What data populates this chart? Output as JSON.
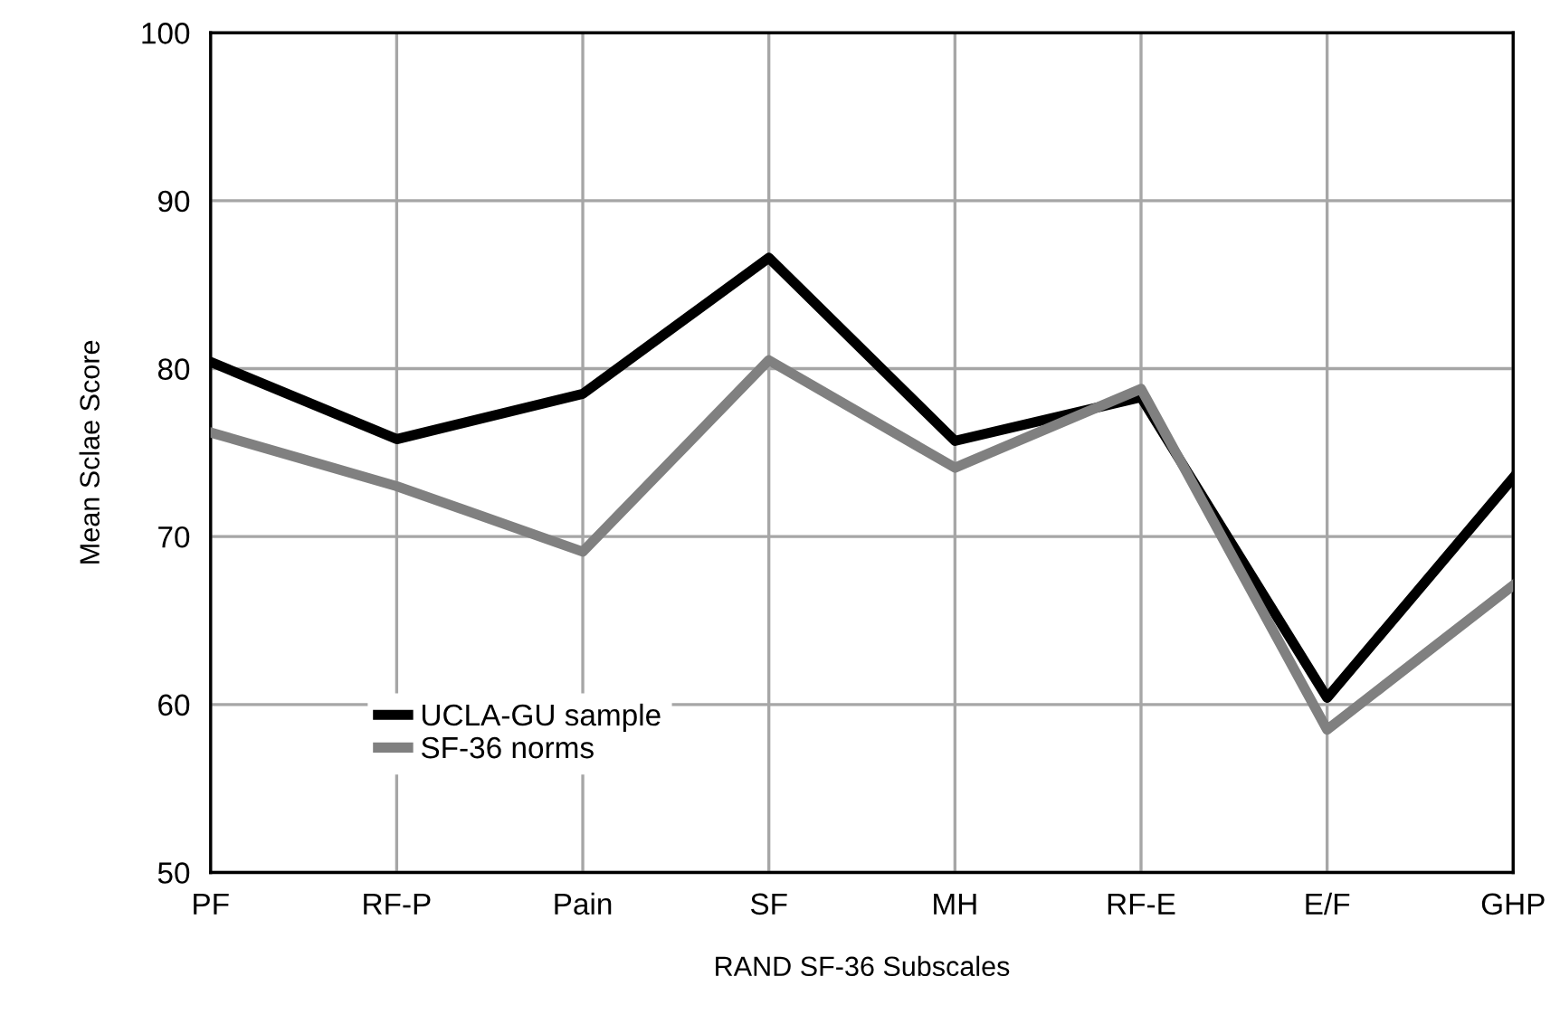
{
  "chart_data": {
    "type": "line",
    "xlabel": "RAND SF-36 Subscales",
    "ylabel": "Mean Sclae Score",
    "categories": [
      "PF",
      "RF-P",
      "Pain",
      "SF",
      "MH",
      "RF-E",
      "E/F",
      "GHP"
    ],
    "series": [
      {
        "name": "UCLA-GU sample",
        "color": "#000000",
        "values": [
          80.4,
          75.8,
          78.5,
          86.6,
          75.7,
          78.3,
          60.4,
          73.5
        ]
      },
      {
        "name": "SF-36 norms",
        "color": "#808080",
        "values": [
          76.2,
          73.0,
          69.1,
          80.5,
          74.1,
          78.8,
          58.5,
          67.1
        ]
      }
    ],
    "ylim": [
      50,
      100
    ],
    "yticks": [
      50,
      60,
      70,
      80,
      90,
      100
    ],
    "grid": true,
    "legend": "bottom left",
    "marker": "none",
    "line_style": "solid"
  }
}
